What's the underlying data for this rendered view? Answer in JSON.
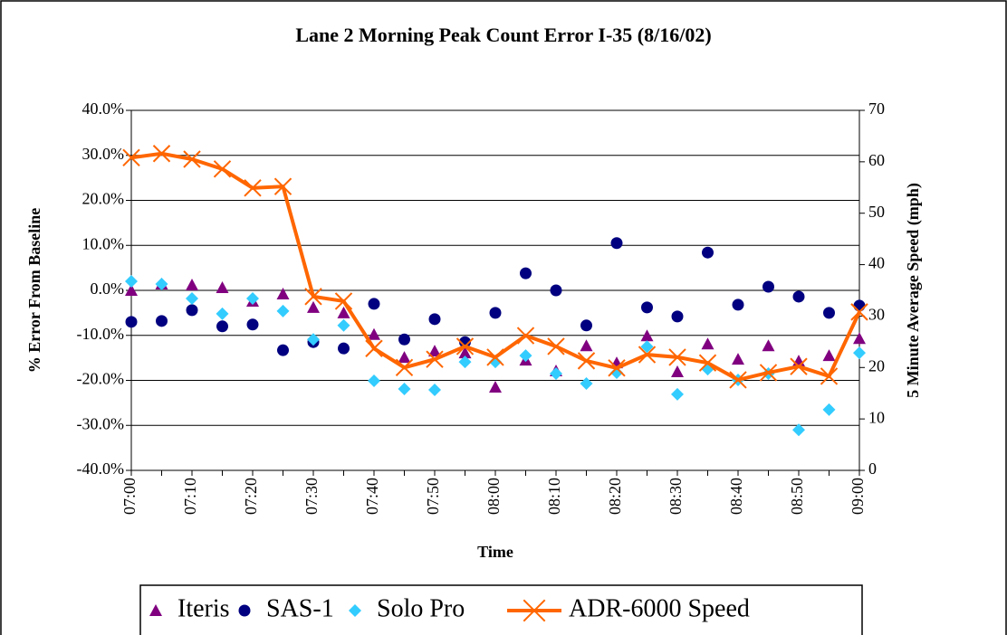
{
  "chart_data": {
    "type": "line",
    "title": "Lane 2 Morning Peak Count Error I-35 (8/16/02)",
    "x_label": "Time",
    "y_label": "% Error From Baseline",
    "y2_label": "5 Minute Average Speed (mph)",
    "categories": [
      "07:00",
      null,
      "07:10",
      null,
      "07:20",
      null,
      "07:30",
      null,
      "07:40",
      null,
      "07:50",
      null,
      "08:00",
      null,
      "08:10",
      null,
      "08:20",
      null,
      "08:30",
      null,
      "08:40",
      null,
      "08:50",
      null,
      "09:00"
    ],
    "ylim": [
      -40,
      40
    ],
    "yticks": [
      {
        "value": -40,
        "label": "-40.0%"
      },
      {
        "value": -30,
        "label": "-30.0%"
      },
      {
        "value": -20,
        "label": "-20.0%"
      },
      {
        "value": -10,
        "label": "-10.0%"
      },
      {
        "value": 0,
        "label": "0.0%"
      },
      {
        "value": 10,
        "label": "10.0%"
      },
      {
        "value": 20,
        "label": "20.0%"
      },
      {
        "value": 30,
        "label": "30.0%"
      },
      {
        "value": 40,
        "label": "40.0%"
      }
    ],
    "y2lim": [
      0,
      70
    ],
    "y2ticks": [
      0,
      10,
      20,
      30,
      40,
      50,
      60,
      70
    ],
    "grid": true,
    "legend": "bottom",
    "series": [
      {
        "name": "Iteris",
        "color": "#800080",
        "marker": "triangle",
        "line": false,
        "values": [
          0.0,
          1.4,
          1.2,
          0.6,
          -2.4,
          -0.8,
          -3.8,
          -5.0,
          -9.8,
          -14.9,
          -13.5,
          -13.9,
          -21.5,
          -15.5,
          -17.9,
          -12.3,
          -16.1,
          -10.1,
          -18.1,
          -11.9,
          -15.3,
          -12.3,
          -15.7,
          -14.5,
          -10.7
        ]
      },
      {
        "name": "SAS-1",
        "color": "#000080",
        "marker": "circle",
        "line": false,
        "values": [
          -7.0,
          -6.8,
          -4.4,
          -8.0,
          -7.6,
          -13.3,
          -11.5,
          -12.9,
          -3.0,
          -10.9,
          -6.4,
          -11.5,
          -5.0,
          3.8,
          0.0,
          -7.8,
          10.5,
          -3.8,
          -5.8,
          8.4,
          -3.2,
          0.8,
          -1.4,
          -5.0,
          -3.4
        ]
      },
      {
        "name": "Solo Pro",
        "color": "#33ccff",
        "marker": "diamond",
        "line": false,
        "values": [
          2.0,
          1.4,
          -1.8,
          -5.2,
          -1.8,
          -4.6,
          -10.9,
          -7.8,
          -20.1,
          -21.9,
          -22.1,
          -15.9,
          -15.9,
          -14.5,
          -18.5,
          -20.7,
          -18.3,
          -12.5,
          -23.1,
          -17.5,
          -19.9,
          -18.5,
          -31.0,
          -26.5,
          -13.9
        ]
      },
      {
        "name": "ADR-6000 Speed",
        "color": "#ff6600",
        "marker": "x",
        "line": true,
        "axis": "y2",
        "values": [
          60.8,
          61.6,
          60.5,
          58.6,
          54.9,
          55.2,
          33.8,
          32.9,
          23.7,
          20.0,
          21.6,
          24.1,
          22.0,
          26.2,
          24.1,
          21.3,
          19.9,
          22.5,
          22.0,
          20.9,
          17.6,
          19.0,
          20.2,
          18.3,
          30.8
        ]
      }
    ]
  }
}
